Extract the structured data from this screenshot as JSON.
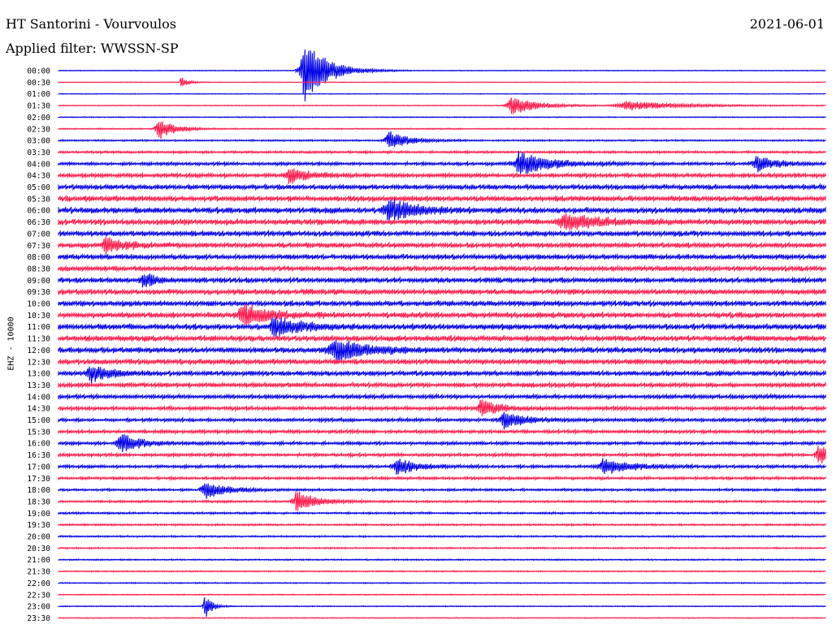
{
  "header": {
    "station": "HT Santorini - Vourvoulos",
    "filter": "Applied filter: WWSSN-SP",
    "date": "2021-06-01",
    "channel": "EHZ - 10000"
  },
  "colors": {
    "odd": "#0000e6",
    "even": "#ff1a4b"
  },
  "chart_data": {
    "type": "helicorder",
    "title": "HT Santorini - Vourvoulos",
    "channel": "EHZ - 10000",
    "trace_labels": [
      "00:00",
      "00:30",
      "01:00",
      "01:30",
      "02:00",
      "02:30",
      "03:00",
      "03:30",
      "04:00",
      "04:30",
      "05:00",
      "05:30",
      "06:00",
      "06:30",
      "07:00",
      "07:30",
      "08:00",
      "08:30",
      "09:00",
      "09:30",
      "10:00",
      "10:30",
      "11:00",
      "11:30",
      "12:00",
      "12:30",
      "13:00",
      "13:30",
      "14:00",
      "14:30",
      "15:00",
      "15:30",
      "16:00",
      "16:30",
      "17:00",
      "17:30",
      "18:00",
      "18:30",
      "19:00",
      "19:30",
      "20:00",
      "20:30",
      "21:00",
      "21:30",
      "22:00",
      "22:30",
      "23:00",
      "23:30"
    ],
    "noise_level": [
      0.12,
      0.1,
      0.12,
      0.15,
      0.18,
      0.25,
      0.35,
      0.55,
      0.75,
      0.95,
      1.15,
      1.3,
      1.4,
      1.35,
      1.25,
      1.2,
      1.2,
      1.2,
      1.2,
      1.25,
      1.3,
      1.35,
      1.35,
      1.35,
      1.3,
      1.25,
      1.15,
      1.05,
      0.95,
      0.85,
      0.8,
      0.78,
      0.75,
      0.72,
      0.7,
      0.62,
      0.55,
      0.5,
      0.45,
      0.4,
      0.36,
      0.32,
      0.28,
      0.25,
      0.22,
      0.2,
      0.18,
      0.16
    ],
    "events": [
      {
        "trace": 0,
        "t": 0.32,
        "amp": 40,
        "dur": 0.035
      },
      {
        "trace": 1,
        "t": 0.16,
        "amp": 8,
        "dur": 0.01
      },
      {
        "trace": 5,
        "t": 0.13,
        "amp": 14,
        "dur": 0.025
      },
      {
        "trace": 3,
        "t": 0.59,
        "amp": 12,
        "dur": 0.04
      },
      {
        "trace": 3,
        "t": 0.74,
        "amp": 6,
        "dur": 0.08
      },
      {
        "trace": 6,
        "t": 0.43,
        "amp": 12,
        "dur": 0.03
      },
      {
        "trace": 8,
        "t": 0.6,
        "amp": 15,
        "dur": 0.045
      },
      {
        "trace": 9,
        "t": 0.3,
        "amp": 9,
        "dur": 0.03
      },
      {
        "trace": 8,
        "t": 0.91,
        "amp": 10,
        "dur": 0.03
      },
      {
        "trace": 12,
        "t": 0.43,
        "amp": 14,
        "dur": 0.04
      },
      {
        "trace": 13,
        "t": 0.66,
        "amp": 11,
        "dur": 0.05
      },
      {
        "trace": 15,
        "t": 0.06,
        "amp": 9,
        "dur": 0.03
      },
      {
        "trace": 18,
        "t": 0.11,
        "amp": 9,
        "dur": 0.02
      },
      {
        "trace": 21,
        "t": 0.24,
        "amp": 13,
        "dur": 0.04
      },
      {
        "trace": 22,
        "t": 0.28,
        "amp": 12,
        "dur": 0.04
      },
      {
        "trace": 24,
        "t": 0.36,
        "amp": 14,
        "dur": 0.05
      },
      {
        "trace": 26,
        "t": 0.04,
        "amp": 10,
        "dur": 0.03
      },
      {
        "trace": 29,
        "t": 0.55,
        "amp": 10,
        "dur": 0.03
      },
      {
        "trace": 30,
        "t": 0.58,
        "amp": 11,
        "dur": 0.03
      },
      {
        "trace": 32,
        "t": 0.08,
        "amp": 13,
        "dur": 0.03
      },
      {
        "trace": 34,
        "t": 0.44,
        "amp": 11,
        "dur": 0.03
      },
      {
        "trace": 34,
        "t": 0.71,
        "amp": 10,
        "dur": 0.04
      },
      {
        "trace": 33,
        "t": 0.99,
        "amp": 14,
        "dur": 0.02
      },
      {
        "trace": 36,
        "t": 0.19,
        "amp": 12,
        "dur": 0.03
      },
      {
        "trace": 37,
        "t": 0.31,
        "amp": 13,
        "dur": 0.03
      },
      {
        "trace": 46,
        "t": 0.19,
        "amp": 18,
        "dur": 0.01
      }
    ]
  }
}
